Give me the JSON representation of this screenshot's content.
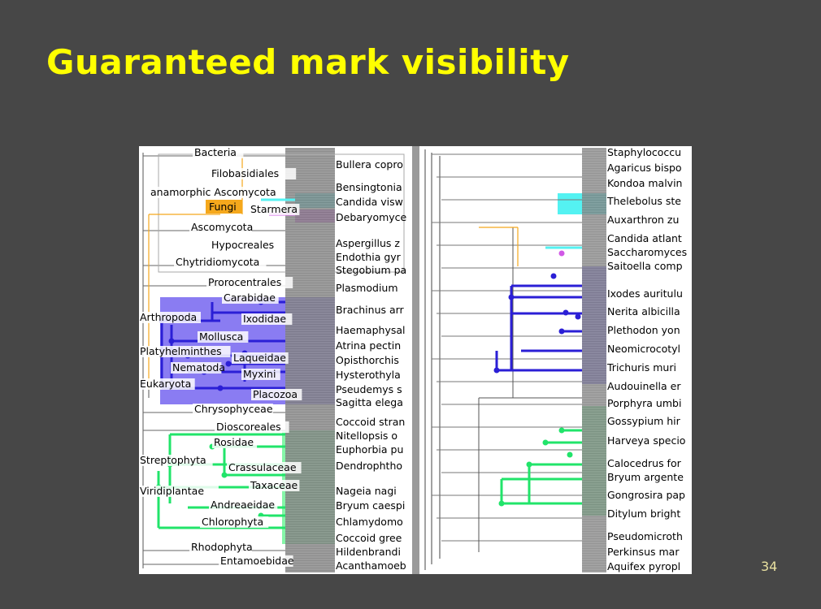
{
  "slide": {
    "title": "Guaranteed mark visibility",
    "page_number": "34"
  },
  "colors": {
    "background": "#474747",
    "title": "#ffff00",
    "blue_group": "#2b1fd6",
    "blue_fill": "#8a7cf2",
    "green_group": "#21e46a",
    "green_fill": "#86f5a8",
    "cyan_group": "#54f2f2",
    "magenta_group": "#d159e6",
    "orange_highlight": "#f5a81c"
  },
  "left_tree": {
    "highlighted_label": "Fungi",
    "clade_labels": [
      "Bacteria",
      "Filobasidiales",
      "anamorphic Ascomycota",
      "Starmera",
      "Ascomycota",
      "Hypocreales",
      "Chytridiomycota",
      "Prorocentrales",
      "Carabidae",
      "Arthropoda",
      "Ixodidae",
      "Mollusca",
      "Platyhelminthes",
      "Laqueidae",
      "Nematoda",
      "Myxini",
      "Eukaryota",
      "Placozoa",
      "Chrysophyceae",
      "Dioscoreales",
      "Rosidae",
      "Streptophyta",
      "Crassulaceae",
      "Viridiplantae",
      "Taxaceae",
      "Andreaeidae",
      "Chlorophyta",
      "Rhodophyta",
      "Entamoebidae"
    ],
    "leaf_labels": [
      "Bullera copro",
      "Bensingtonia",
      "Candida visw",
      "Debaryomyce",
      "Aspergillus z",
      "Endothia gyr",
      "Stegobium pa",
      "Plasmodium",
      "Brachinus arr",
      "Haemaphysal",
      "Atrina pectin",
      "Opisthorchis",
      "Hysterothyla",
      "Pseudemys s",
      "Sagitta elega",
      "Coccoid stran",
      "Nitellopsis o",
      "Euphorbia pu",
      "Dendrophtho",
      "Nageia nagi",
      "Bryum caespi",
      "Chlamydomo",
      "Coccoid gree",
      "Hildenbrandi",
      "Acanthamoeb"
    ]
  },
  "right_tree": {
    "leaf_labels": [
      "Staphylococcu",
      "Agaricus bispo",
      "Kondoa malvin",
      "Thelebolus ste",
      "Auxarthron zu",
      "Candida atlant",
      "Saccharomyces",
      "Saitoella comp",
      "Ixodes auritulu",
      "Nerita albicilla",
      "Plethodon yon",
      "Neomicrocotyl",
      "Trichuris muri",
      "Audouinella er",
      "Porphyra umbi",
      "Gossypium hir",
      "Harveya specio",
      "Calocedrus for",
      "Bryum argente",
      "Gongrosira pap",
      "Ditylum bright",
      "Pseudomicroth",
      "Perkinsus mar",
      "Aquifex pyropl"
    ]
  }
}
